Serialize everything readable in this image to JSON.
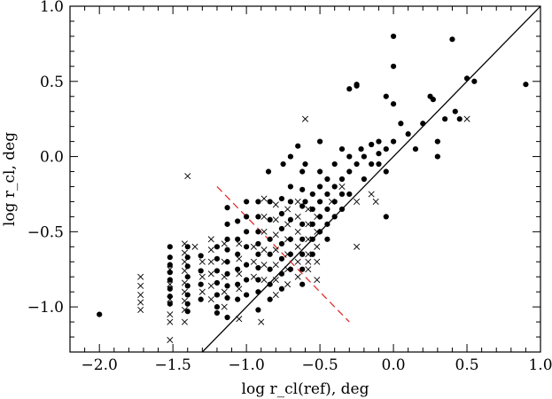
{
  "chart_data": {
    "type": "scatter",
    "xlabel": "log r_cl(ref), deg",
    "ylabel": "log r_cl, deg",
    "xlim": [
      -2.2,
      1.0
    ],
    "ylim": [
      -1.3,
      1.0
    ],
    "xticks": [
      -2.0,
      -1.5,
      -1.0,
      -0.5,
      0.0,
      0.5,
      1.0
    ],
    "xtick_labels": [
      "−2.0",
      "−1.5",
      "−1.0",
      "−0.5",
      "0.0",
      "0.5",
      "1.0"
    ],
    "yticks": [
      -1.0,
      -0.5,
      0.0,
      0.5,
      1.0
    ],
    "ytick_labels": [
      "−1.0",
      "−0.5",
      "0.0",
      "0.5",
      "1.0"
    ],
    "grid": false,
    "lines": [
      {
        "kind": "identity",
        "x": [
          -1.3,
          1.0
        ],
        "y": [
          -1.3,
          1.0
        ],
        "color": "#000000",
        "style": "solid"
      },
      {
        "kind": "fit",
        "x": [
          -1.2,
          -0.3
        ],
        "y": [
          -0.2,
          -1.1
        ],
        "color": "#e0302a",
        "style": "dashed"
      }
    ],
    "series": [
      {
        "marker": "dot",
        "color": "#000000",
        "points": [
          [
            -2.0,
            -1.05
          ],
          [
            -1.52,
            -0.6
          ],
          [
            -1.52,
            -0.67
          ],
          [
            -1.52,
            -0.72
          ],
          [
            -1.52,
            -0.77
          ],
          [
            -1.52,
            -0.82
          ],
          [
            -1.52,
            -0.88
          ],
          [
            -1.52,
            -0.93
          ],
          [
            -1.52,
            -0.98
          ],
          [
            -1.4,
            -0.6
          ],
          [
            -1.4,
            -0.67
          ],
          [
            -1.4,
            -0.73
          ],
          [
            -1.4,
            -0.8
          ],
          [
            -1.4,
            -0.86
          ],
          [
            -1.4,
            -0.92
          ],
          [
            -1.4,
            -0.98
          ],
          [
            -1.4,
            -1.03
          ],
          [
            -1.31,
            -0.66
          ],
          [
            -1.31,
            -0.76
          ],
          [
            -1.31,
            -0.85
          ],
          [
            -1.31,
            -0.95
          ],
          [
            -1.2,
            -0.6
          ],
          [
            -1.2,
            -0.68
          ],
          [
            -1.2,
            -0.76
          ],
          [
            -1.2,
            -0.84
          ],
          [
            -1.2,
            -0.92
          ],
          [
            -1.2,
            -1.0
          ],
          [
            -1.2,
            -1.04
          ],
          [
            -1.13,
            -0.34
          ],
          [
            -1.13,
            -0.45
          ],
          [
            -1.13,
            -0.55
          ],
          [
            -1.13,
            -0.62
          ],
          [
            -1.13,
            -0.7
          ],
          [
            -1.13,
            -0.78
          ],
          [
            -1.13,
            -0.86
          ],
          [
            -1.13,
            -0.94
          ],
          [
            -1.13,
            -1.07
          ],
          [
            -1.06,
            -0.43
          ],
          [
            -1.06,
            -0.55
          ],
          [
            -1.06,
            -0.65
          ],
          [
            -1.06,
            -0.75
          ],
          [
            -1.06,
            -0.85
          ],
          [
            -1.06,
            -0.95
          ],
          [
            -1.0,
            -0.3
          ],
          [
            -1.0,
            -0.4
          ],
          [
            -1.0,
            -0.5
          ],
          [
            -1.0,
            -0.6
          ],
          [
            -1.0,
            -0.72
          ],
          [
            -1.0,
            -0.82
          ],
          [
            -1.0,
            -0.92
          ],
          [
            -0.92,
            -0.3
          ],
          [
            -0.92,
            -0.4
          ],
          [
            -0.92,
            -0.5
          ],
          [
            -0.92,
            -0.58
          ],
          [
            -0.92,
            -0.65
          ],
          [
            -0.92,
            -0.74
          ],
          [
            -0.92,
            -0.82
          ],
          [
            -0.92,
            -0.9
          ],
          [
            -0.92,
            -1.02
          ],
          [
            -0.84,
            -0.3
          ],
          [
            -0.84,
            -0.42
          ],
          [
            -0.84,
            -0.55
          ],
          [
            -0.84,
            -0.65
          ],
          [
            -0.84,
            -0.75
          ],
          [
            -0.84,
            -0.85
          ],
          [
            -0.84,
            -0.95
          ],
          [
            -0.76,
            -0.28
          ],
          [
            -0.76,
            -0.38
          ],
          [
            -0.76,
            -0.48
          ],
          [
            -0.76,
            -0.58
          ],
          [
            -0.76,
            -0.68
          ],
          [
            -0.76,
            -0.78
          ],
          [
            -0.76,
            -0.88
          ],
          [
            -0.7,
            -0.2
          ],
          [
            -0.7,
            -0.3
          ],
          [
            -0.7,
            -0.42
          ],
          [
            -0.7,
            -0.55
          ],
          [
            -0.7,
            -0.65
          ],
          [
            -0.7,
            -0.75
          ],
          [
            -0.62,
            -0.1
          ],
          [
            -0.62,
            -0.22
          ],
          [
            -0.62,
            -0.33
          ],
          [
            -0.62,
            -0.45
          ],
          [
            -0.62,
            -0.55
          ],
          [
            -0.62,
            -0.65
          ],
          [
            -0.62,
            -0.75
          ],
          [
            -0.62,
            -0.85
          ],
          [
            -0.55,
            -0.25
          ],
          [
            -0.55,
            -0.35
          ],
          [
            -0.55,
            -0.45
          ],
          [
            -0.55,
            -0.55
          ],
          [
            -0.55,
            -0.65
          ],
          [
            -0.5,
            -0.1
          ],
          [
            -0.5,
            -0.2
          ],
          [
            -0.5,
            -0.3
          ],
          [
            -0.5,
            -0.4
          ],
          [
            -0.5,
            -0.5
          ],
          [
            -0.45,
            -0.15
          ],
          [
            -0.45,
            -0.25
          ],
          [
            -0.45,
            -0.35
          ],
          [
            -0.45,
            -0.45
          ],
          [
            -0.45,
            -0.55
          ],
          [
            -0.4,
            -0.05
          ],
          [
            -0.4,
            -0.2
          ],
          [
            -0.4,
            -0.3
          ],
          [
            -0.4,
            -0.4
          ],
          [
            -0.35,
            0.05
          ],
          [
            -0.35,
            -0.15
          ],
          [
            -0.35,
            -0.25
          ],
          [
            -0.35,
            -0.35
          ],
          [
            -0.3,
            -0.1
          ],
          [
            -0.3,
            -0.25
          ],
          [
            -0.25,
            -0.05
          ],
          [
            -0.22,
            0.05
          ],
          [
            -0.2,
            -0.15
          ],
          [
            -0.15,
            0.08
          ],
          [
            -0.1,
            0.1
          ],
          [
            -0.1,
            0.02
          ],
          [
            -0.05,
            -0.1
          ],
          [
            -0.05,
            -0.4
          ],
          [
            -0.3,
            0.45
          ],
          [
            -0.25,
            0.48
          ],
          [
            -0.25,
            0.47
          ],
          [
            -0.05,
            0.4
          ],
          [
            0.0,
            0.8
          ],
          [
            0.0,
            0.6
          ],
          [
            0.0,
            0.35
          ],
          [
            0.0,
            0.1
          ],
          [
            0.05,
            0.22
          ],
          [
            0.1,
            0.15
          ],
          [
            0.15,
            0.05
          ],
          [
            0.2,
            0.22
          ],
          [
            0.25,
            0.4
          ],
          [
            0.27,
            0.38
          ],
          [
            0.3,
            0.1
          ],
          [
            0.35,
            0.25
          ],
          [
            0.4,
            0.78
          ],
          [
            0.45,
            0.25
          ],
          [
            0.5,
            0.52
          ],
          [
            0.55,
            0.5
          ],
          [
            0.9,
            0.48
          ],
          [
            -0.65,
            0.07
          ],
          [
            -0.7,
            0.0
          ],
          [
            -0.75,
            -0.05
          ],
          [
            -0.6,
            -0.05
          ],
          [
            -0.5,
            0.1
          ],
          [
            -0.3,
            0.0
          ],
          [
            -0.15,
            -0.05
          ],
          [
            -0.05,
            0.05
          ],
          [
            -0.85,
            -0.1
          ],
          [
            0.3,
            0.0
          ],
          [
            0.42,
            0.3
          ],
          [
            -0.2,
            0.0
          ],
          [
            -0.1,
            -0.05
          ],
          [
            -0.6,
            -0.3
          ]
        ]
      },
      {
        "marker": "cross",
        "color": "#000000",
        "points": [
          [
            -1.72,
            -0.8
          ],
          [
            -1.72,
            -0.86
          ],
          [
            -1.72,
            -0.92
          ],
          [
            -1.72,
            -0.97
          ],
          [
            -1.72,
            -1.02
          ],
          [
            -1.52,
            -0.75
          ],
          [
            -1.52,
            -0.85
          ],
          [
            -1.52,
            -0.95
          ],
          [
            -1.52,
            -1.05
          ],
          [
            -1.52,
            -1.1
          ],
          [
            -1.52,
            -1.22
          ],
          [
            -1.42,
            -0.58
          ],
          [
            -1.42,
            -0.64
          ],
          [
            -1.42,
            -0.7
          ],
          [
            -1.42,
            -0.76
          ],
          [
            -1.42,
            -0.84
          ],
          [
            -1.42,
            -0.9
          ],
          [
            -1.42,
            -0.96
          ],
          [
            -1.42,
            -1.02
          ],
          [
            -1.42,
            -1.1
          ],
          [
            -1.4,
            -0.13
          ],
          [
            -1.35,
            -0.6
          ],
          [
            -1.3,
            -0.7
          ],
          [
            -1.3,
            -0.8
          ],
          [
            -1.3,
            -0.9
          ],
          [
            -1.24,
            -0.55
          ],
          [
            -1.24,
            -0.62
          ],
          [
            -1.24,
            -0.7
          ],
          [
            -1.24,
            -0.78
          ],
          [
            -1.24,
            -0.86
          ],
          [
            -1.24,
            -0.95
          ],
          [
            -1.15,
            -0.58
          ],
          [
            -1.15,
            -0.7
          ],
          [
            -1.15,
            -0.8
          ],
          [
            -1.15,
            -0.9
          ],
          [
            -1.15,
            -1.0
          ],
          [
            -1.05,
            -0.58
          ],
          [
            -1.05,
            -0.68
          ],
          [
            -1.05,
            -0.78
          ],
          [
            -1.05,
            -0.88
          ],
          [
            -1.05,
            -1.08
          ],
          [
            -0.95,
            -0.6
          ],
          [
            -0.95,
            -0.7
          ],
          [
            -0.95,
            -0.8
          ],
          [
            -0.9,
            -1.1
          ],
          [
            -0.88,
            -0.28
          ],
          [
            -0.88,
            -0.4
          ],
          [
            -0.88,
            -0.5
          ],
          [
            -0.88,
            -0.62
          ],
          [
            -0.88,
            -0.72
          ],
          [
            -0.88,
            -0.82
          ],
          [
            -0.8,
            -0.32
          ],
          [
            -0.8,
            -0.42
          ],
          [
            -0.8,
            -0.52
          ],
          [
            -0.8,
            -0.62
          ],
          [
            -0.8,
            -0.72
          ],
          [
            -0.8,
            -0.82
          ],
          [
            -0.8,
            -0.92
          ],
          [
            -0.72,
            -0.35
          ],
          [
            -0.72,
            -0.45
          ],
          [
            -0.72,
            -0.55
          ],
          [
            -0.72,
            -0.65
          ],
          [
            -0.72,
            -0.75
          ],
          [
            -0.72,
            -0.85
          ],
          [
            -0.65,
            -0.3
          ],
          [
            -0.65,
            -0.4
          ],
          [
            -0.65,
            -0.5
          ],
          [
            -0.65,
            -0.6
          ],
          [
            -0.65,
            -0.7
          ],
          [
            -0.65,
            -0.8
          ],
          [
            -0.58,
            -0.35
          ],
          [
            -0.58,
            -0.45
          ],
          [
            -0.58,
            -0.55
          ],
          [
            -0.58,
            -0.65
          ],
          [
            -0.58,
            -0.7
          ],
          [
            -0.52,
            -0.4
          ],
          [
            -0.52,
            -0.5
          ],
          [
            -0.52,
            -0.6
          ],
          [
            -0.52,
            -0.7
          ],
          [
            -0.52,
            -0.82
          ],
          [
            -0.6,
            0.25
          ],
          [
            -0.42,
            -0.3
          ],
          [
            -0.35,
            -0.2
          ],
          [
            -0.25,
            -0.3
          ],
          [
            -0.25,
            -0.6
          ],
          [
            -0.12,
            -0.3
          ],
          [
            -0.15,
            -0.25
          ],
          [
            0.5,
            0.25
          ],
          [
            -0.58,
            -0.75
          ]
        ]
      }
    ]
  }
}
